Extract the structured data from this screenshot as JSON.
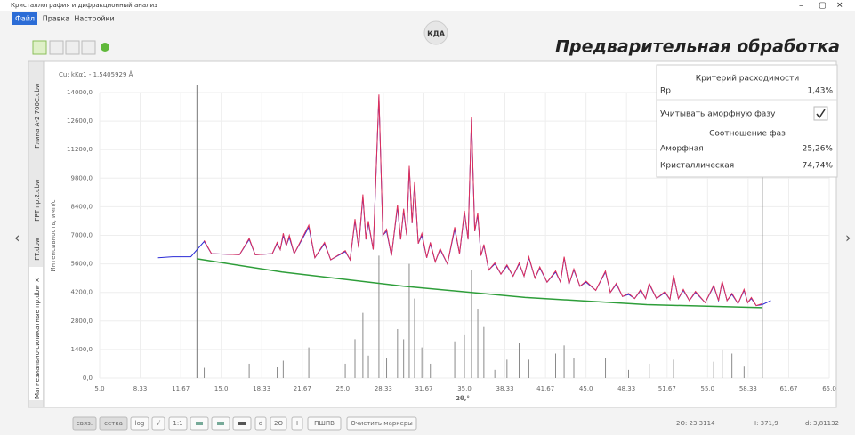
{
  "window": {
    "title": "Кристаллография и дифракционный анализ"
  },
  "menu": [
    "Файл",
    "Правка",
    "Настройки"
  ],
  "logo": "КДА",
  "page_title": "Предварительная обработка",
  "tabs": [
    "Глина А-2 700С.dbw",
    "ГРТ пр.2.dbw",
    "ГТ.dbw",
    "Магнезиально-силикатные пр.dbw ×"
  ],
  "chart_data": {
    "type": "line",
    "subtitle": "Cu: kKα1 - 1.5405929 Å",
    "x_label": "2θ,°",
    "y_label": "Интенсивность, имп/с",
    "xlim": [
      5,
      65
    ],
    "ylim": [
      0,
      14000
    ],
    "grid": true,
    "xticks": [
      {
        "value": 5,
        "label": "5,0"
      },
      {
        "value": 8.33,
        "label": "8,33"
      },
      {
        "value": 11.67,
        "label": "11,67"
      },
      {
        "value": 15,
        "label": "15,0"
      },
      {
        "value": 18.33,
        "label": "18,33"
      },
      {
        "value": 21.67,
        "label": "21,67"
      },
      {
        "value": 25,
        "label": "25,0"
      },
      {
        "value": 28.33,
        "label": "28,33"
      },
      {
        "value": 31.67,
        "label": "31,67"
      },
      {
        "value": 35,
        "label": "35,0"
      },
      {
        "value": 38.33,
        "label": "38,33"
      },
      {
        "value": 41.67,
        "label": "41,67"
      },
      {
        "value": 45,
        "label": "45,0"
      },
      {
        "value": 48.33,
        "label": "48,33"
      },
      {
        "value": 51.67,
        "label": "51,67"
      },
      {
        "value": 55,
        "label": "55,0"
      },
      {
        "value": 58.33,
        "label": "58,33"
      },
      {
        "value": 61.67,
        "label": "61,67"
      },
      {
        "value": 65,
        "label": "65,0"
      }
    ],
    "yticks": [
      {
        "value": 0,
        "label": "0,0"
      },
      {
        "value": 1400,
        "label": "1400,0"
      },
      {
        "value": 2800,
        "label": "2800,0"
      },
      {
        "value": 4200,
        "label": "4200,0"
      },
      {
        "value": 5600,
        "label": "5600,0"
      },
      {
        "value": 7000,
        "label": "7000,0"
      },
      {
        "value": 8400,
        "label": "8400,0"
      },
      {
        "value": 9800,
        "label": "9800,0"
      },
      {
        "value": 11200,
        "label": "11200,0"
      },
      {
        "value": 12600,
        "label": "12600,0"
      },
      {
        "value": 14000,
        "label": "14000,0"
      }
    ],
    "x": [
      9.8,
      11.0,
      12.5,
      13.6,
      14.2,
      16.5,
      17.3,
      17.8,
      19.2,
      19.6,
      19.85,
      20.1,
      20.35,
      20.6,
      21.0,
      22.2,
      22.7,
      23.5,
      24.0,
      25.2,
      25.6,
      26.0,
      26.3,
      26.65,
      26.9,
      27.1,
      27.5,
      27.97,
      28.3,
      28.6,
      29.0,
      29.5,
      29.75,
      30.0,
      30.25,
      30.46,
      30.7,
      30.9,
      31.2,
      31.5,
      31.9,
      32.2,
      32.6,
      33.0,
      33.6,
      34.2,
      34.6,
      35.0,
      35.3,
      35.58,
      35.85,
      36.1,
      36.35,
      36.6,
      37.0,
      37.5,
      38.0,
      38.5,
      39.0,
      39.5,
      39.9,
      40.3,
      40.8,
      41.2,
      41.8,
      42.5,
      42.9,
      43.2,
      43.6,
      44.0,
      44.5,
      45.0,
      45.8,
      46.6,
      47.0,
      47.5,
      48.0,
      48.5,
      49.0,
      49.5,
      49.9,
      50.2,
      50.8,
      51.5,
      51.9,
      52.2,
      52.6,
      53.0,
      53.5,
      54.0,
      54.8,
      55.5,
      55.9,
      56.2,
      56.6,
      57.0,
      57.5,
      58.0,
      58.3,
      58.6,
      59.0,
      59.5,
      60.2
    ],
    "series": [
      {
        "color": "#2b2bd6",
        "values": [
          5900,
          5950,
          5950,
          6700,
          6100,
          6050,
          6800,
          6050,
          6100,
          6600,
          6300,
          7000,
          6500,
          6900,
          6100,
          7400,
          5900,
          6600,
          5800,
          6200,
          5800,
          7700,
          6400,
          8900,
          6800,
          7600,
          6300,
          13800,
          7000,
          7200,
          6000,
          8400,
          6800,
          8200,
          7000,
          10300,
          7600,
          9500,
          6600,
          7000,
          5900,
          6600,
          5700,
          6300,
          5600,
          7300,
          6100,
          8100,
          6800,
          12700,
          7200,
          8000,
          6000,
          6500,
          5300,
          5600,
          5100,
          5500,
          5000,
          5600,
          5000,
          5900,
          4900,
          5400,
          4700,
          5200,
          4700,
          5900,
          4600,
          5300,
          4500,
          4700,
          4300,
          5200,
          4200,
          4600,
          4000,
          4100,
          3900,
          4300,
          3900,
          4600,
          3900,
          4200,
          3850,
          5000,
          3900,
          4300,
          3800,
          4200,
          3700,
          4500,
          3800,
          4700,
          3800,
          4100,
          3650,
          4300,
          3700,
          3900,
          3550,
          3600,
          3800
        ]
      },
      {
        "color": "#e0305a",
        "values": [
          null,
          null,
          null,
          6750,
          6100,
          6050,
          6850,
          6050,
          6100,
          6650,
          6300,
          7100,
          6500,
          7000,
          6100,
          7500,
          5900,
          6650,
          5800,
          6250,
          5800,
          7800,
          6400,
          9000,
          6800,
          7700,
          6300,
          13900,
          7000,
          7300,
          6000,
          8500,
          6800,
          8300,
          7000,
          10400,
          7600,
          9600,
          6600,
          7100,
          5900,
          6650,
          5700,
          6350,
          5600,
          7400,
          6100,
          8200,
          6800,
          12800,
          7200,
          8100,
          6000,
          6550,
          5300,
          5650,
          5100,
          5550,
          5000,
          5650,
          5000,
          5950,
          4900,
          5450,
          4700,
          5250,
          4700,
          5950,
          4600,
          5350,
          4500,
          4750,
          4300,
          5250,
          4200,
          4650,
          4000,
          4150,
          3900,
          4350,
          3900,
          4650,
          3900,
          4250,
          3850,
          5050,
          3900,
          4350,
          3800,
          4250,
          3700,
          4550,
          3800,
          4750,
          3800,
          4150,
          3650,
          4350,
          3700,
          3950,
          3550,
          3650,
          null
        ]
      }
    ],
    "background": {
      "color": "#2e9e3a",
      "x": [
        13,
        20,
        30,
        40,
        50,
        59.5
      ],
      "values": [
        5850,
        5200,
        4500,
        3950,
        3600,
        3450
      ]
    },
    "sticks": {
      "color": "#8a8a8a",
      "x": [
        13.6,
        17.3,
        19.6,
        20.1,
        22.2,
        25.2,
        26.0,
        26.65,
        27.1,
        27.97,
        28.6,
        29.5,
        30.0,
        30.46,
        30.9,
        31.5,
        32.2,
        34.2,
        35.0,
        35.58,
        36.1,
        36.6,
        37.5,
        38.5,
        39.5,
        40.3,
        42.5,
        43.2,
        44.0,
        46.6,
        48.5,
        50.2,
        52.2,
        55.5,
        56.2,
        57.0,
        58.0
      ],
      "values": [
        500,
        700,
        550,
        850,
        1500,
        700,
        1900,
        3200,
        1100,
        6000,
        1000,
        2400,
        1900,
        5600,
        3900,
        1500,
        700,
        1800,
        2100,
        5300,
        3400,
        2500,
        400,
        900,
        1700,
        900,
        1200,
        1600,
        1000,
        1000,
        400,
        700,
        900,
        800,
        1400,
        1200,
        600
      ]
    },
    "markers": {
      "color": "#777777",
      "x": [
        13.0,
        59.5
      ]
    }
  },
  "panel": {
    "title": "Критерий расходимости",
    "rp_label": "Rp",
    "rp_value": "1,43%",
    "amorphous_checkbox": "Учитывать аморфную фазу",
    "ratio_title": "Соотношение фаз",
    "rows": [
      [
        "Аморфная",
        "25,26%"
      ],
      [
        "Кристаллическая",
        "74,74%"
      ]
    ]
  },
  "toolbar": [
    "связ.",
    "сетка",
    "log",
    "√",
    "1:1",
    "d",
    "2Θ",
    "I",
    "ПШПВ",
    "Очистить маркеры"
  ],
  "status": [
    "2Θ: 23,3114",
    "I: 371,9",
    "d: 3,81132"
  ]
}
